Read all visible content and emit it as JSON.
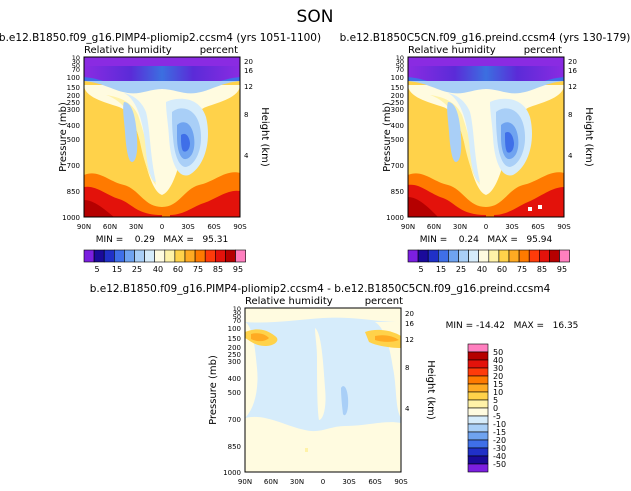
{
  "season": "SON",
  "chart_data": [
    {
      "type": "heatmap",
      "title": "b.e12.B1850.f09_g16.PIMP4-pliomip2.ccsm4 (yrs 1051-1100)",
      "left_label": "Relative humidity",
      "right_label": "percent",
      "ylabel": "Pressure (mb)",
      "ylabel_right": "Height (km)",
      "x_ticks": [
        "90N",
        "60N",
        "30N",
        "0",
        "30S",
        "60S",
        "90S"
      ],
      "y_ticks": [
        "10",
        "30",
        "50",
        "70",
        "100",
        "150",
        "200",
        "250",
        "300",
        "400",
        "500",
        "700",
        "850",
        "1000"
      ],
      "height_ticks": [
        "4",
        "8",
        "12",
        "16",
        "20"
      ],
      "ylim": [
        1000,
        10
      ],
      "stats": "MIN =    0.29   MAX =   95.31"
    },
    {
      "type": "heatmap",
      "title": "b.e12.B1850C5CN.f09_g16.preind.ccsm4 (yrs 130-179)",
      "left_label": "Relative humidity",
      "right_label": "percent",
      "ylabel": "Pressure (mb)",
      "ylabel_right": "Height (km)",
      "x_ticks": [
        "90N",
        "60N",
        "30N",
        "0",
        "30S",
        "60S",
        "90S"
      ],
      "y_ticks": [
        "10",
        "30",
        "50",
        "70",
        "100",
        "150",
        "200",
        "250",
        "300",
        "400",
        "500",
        "700",
        "850",
        "1000"
      ],
      "height_ticks": [
        "4",
        "8",
        "12",
        "16",
        "20"
      ],
      "ylim": [
        1000,
        10
      ],
      "stats": "MIN =    0.24   MAX =   95.94"
    },
    {
      "type": "heatmap",
      "title": "b.e12.B1850.f09_g16.PIMP4-pliomip2.ccsm4 - b.e12.B1850C5CN.f09_g16.preind.ccsm4",
      "left_label": "Relative humidity",
      "right_label": "percent",
      "ylabel": "Pressure (mb)",
      "ylabel_right": "Height (km)",
      "x_ticks": [
        "90N",
        "60N",
        "30N",
        "0",
        "30S",
        "60S",
        "90S"
      ],
      "y_ticks": [
        "10",
        "30",
        "50",
        "70",
        "100",
        "150",
        "200",
        "250",
        "300",
        "400",
        "500",
        "700",
        "850",
        "1000"
      ],
      "height_ticks": [
        "4",
        "8",
        "12",
        "16",
        "20"
      ],
      "ylim": [
        1000,
        10
      ],
      "stats": "MIN = -14.42   MAX =   16.35"
    }
  ],
  "colorbar_top": {
    "labels": [
      "5",
      "15",
      "25",
      "40",
      "60",
      "75",
      "85",
      "95"
    ],
    "colors": [
      "#7b1fe0",
      "#1a0a9a",
      "#2030c8",
      "#3f6fe8",
      "#6fa3f0",
      "#a9cff7",
      "#d6ecfb",
      "#fffbe0",
      "#fff2a8",
      "#ffd24a",
      "#ffaa22",
      "#ff7a00",
      "#ff3b0a",
      "#e3120b",
      "#b50000",
      "#ff7fbf"
    ]
  },
  "colorbar_diff": {
    "labels": [
      "50",
      "40",
      "30",
      "20",
      "15",
      "10",
      "5",
      "0",
      "-5",
      "-10",
      "-15",
      "-20",
      "-30",
      "-40",
      "-50"
    ],
    "colors": [
      "#ff7fbf",
      "#b50000",
      "#e3120b",
      "#ff3b0a",
      "#ff7a00",
      "#ffaa22",
      "#ffd24a",
      "#fff2a8",
      "#fffbe0",
      "#d6ecfb",
      "#a9cff7",
      "#6fa3f0",
      "#3f6fe8",
      "#2030c8",
      "#1a0a9a",
      "#7b1fe0"
    ]
  }
}
